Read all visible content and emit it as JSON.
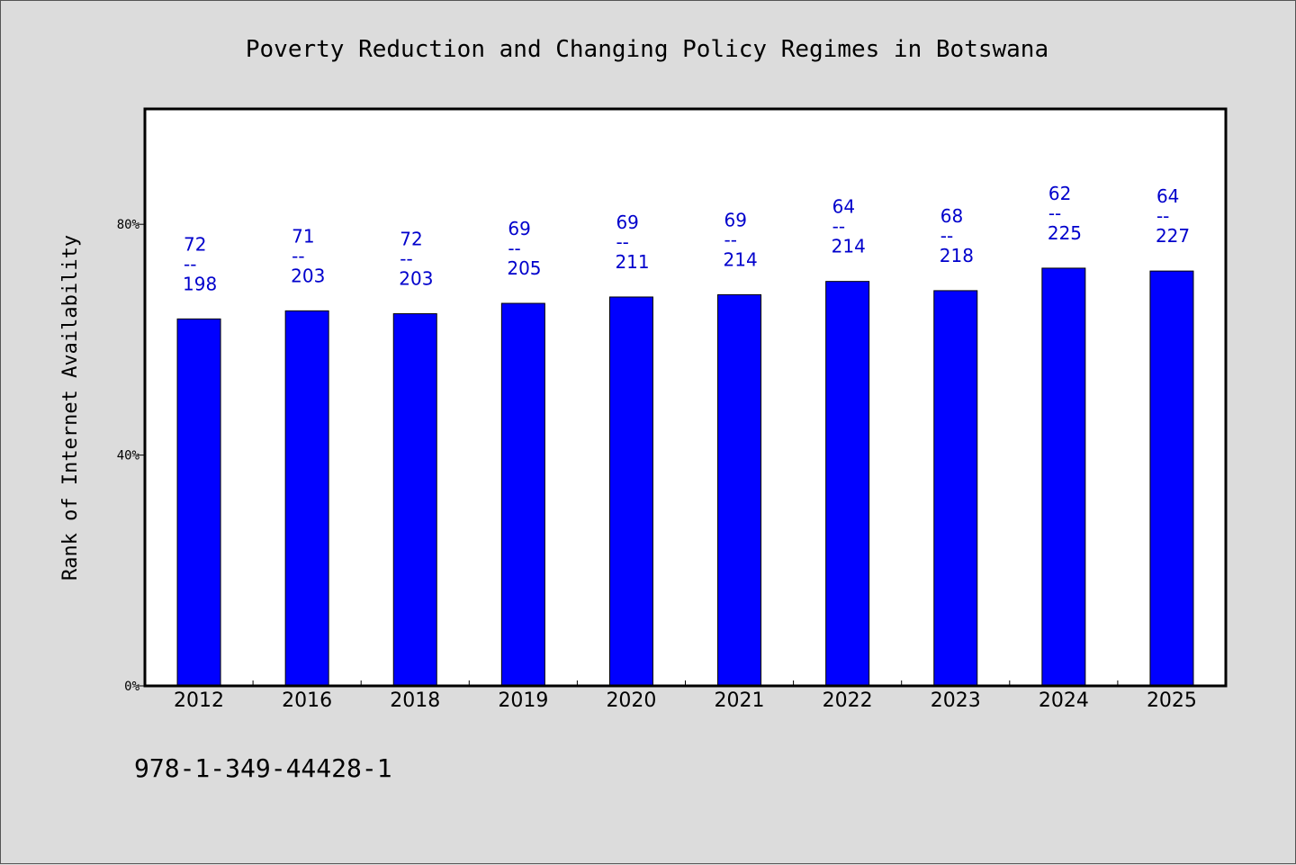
{
  "chart_data": {
    "type": "bar",
    "title": "Poverty Reduction and Changing Policy Regimes in Botswana",
    "xlabel": "",
    "ylabel": "Rank of Internet Availability",
    "ylim": [
      0,
      100
    ],
    "yticks": [
      {
        "value": 0,
        "label": "0%"
      },
      {
        "value": 40,
        "label": "40%"
      },
      {
        "value": 80,
        "label": "80%"
      }
    ],
    "categories": [
      "2012",
      "2016",
      "2018",
      "2019",
      "2020",
      "2021",
      "2022",
      "2023",
      "2024",
      "2025"
    ],
    "values": [
      63.6,
      65.0,
      64.5,
      66.3,
      67.4,
      67.8,
      70.1,
      68.5,
      72.4,
      71.9
    ],
    "data_labels": [
      {
        "top": "72",
        "mid": "--",
        "bottom": "198"
      },
      {
        "top": "71",
        "mid": "--",
        "bottom": "203"
      },
      {
        "top": "72",
        "mid": "--",
        "bottom": "203"
      },
      {
        "top": "69",
        "mid": "--",
        "bottom": "205"
      },
      {
        "top": "69",
        "mid": "--",
        "bottom": "211"
      },
      {
        "top": "69",
        "mid": "--",
        "bottom": "214"
      },
      {
        "top": "64",
        "mid": "--",
        "bottom": "214"
      },
      {
        "top": "68",
        "mid": "--",
        "bottom": "218"
      },
      {
        "top": "62",
        "mid": "--",
        "bottom": "225"
      },
      {
        "top": "64",
        "mid": "--",
        "bottom": "227"
      }
    ],
    "grid": false,
    "legend": "none",
    "colors": {
      "bar": "#0000ff",
      "bar_outline": "#000000",
      "data_label": "#0000cc",
      "plot_bg": "#ffffff",
      "page_bg": "#dcdcdc"
    }
  },
  "footer": {
    "isbn": "978-1-349-44428-1"
  }
}
